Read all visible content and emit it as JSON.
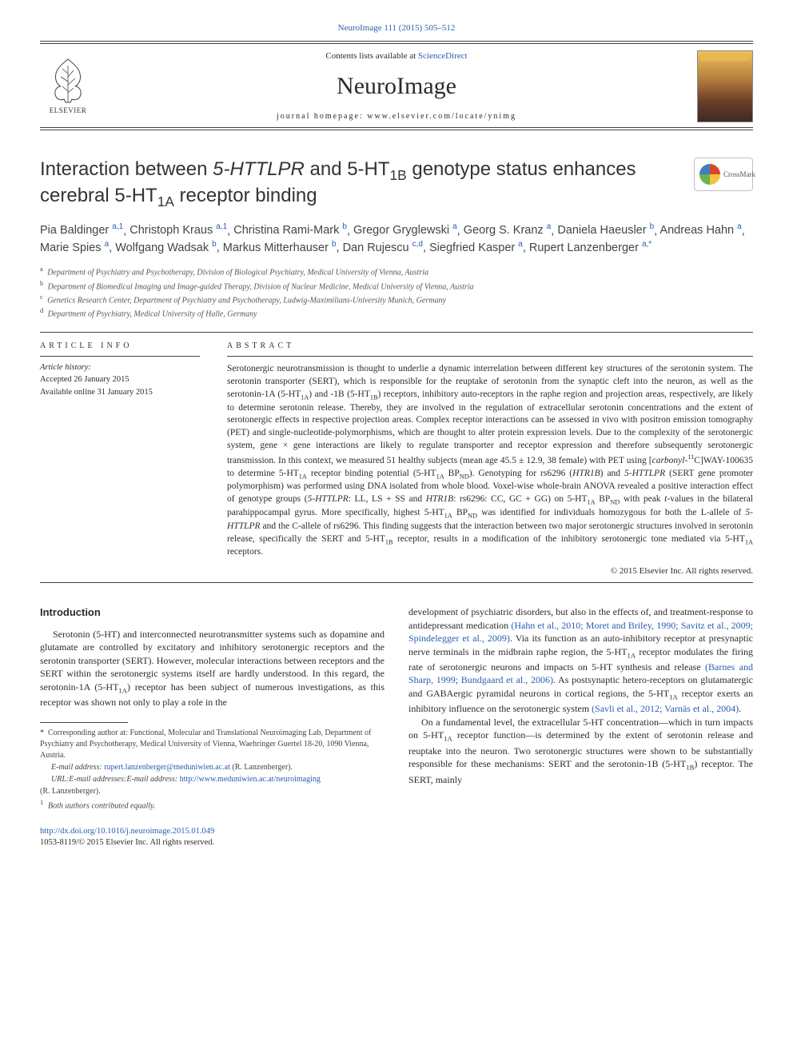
{
  "topLink": {
    "journal": "NeuroImage 111 (2015) 505–512"
  },
  "masthead": {
    "contentsPrefix": "Contents lists available at ",
    "contentsLink": "ScienceDirect",
    "journalName": "NeuroImage",
    "homepagePrefix": "journal homepage: ",
    "homepageUrl": "www.elsevier.com/locate/ynimg",
    "elsevierLabel": "ELSEVIER"
  },
  "crossmark": {
    "label": "CrossMark"
  },
  "title": "Interaction between 5-HTTLPR and 5-HT1B genotype status enhances cerebral 5-HT1A receptor binding",
  "authors": [
    {
      "name": "Pia Baldinger",
      "sup": "a,1"
    },
    {
      "name": "Christoph Kraus",
      "sup": "a,1"
    },
    {
      "name": "Christina Rami-Mark",
      "sup": "b"
    },
    {
      "name": "Gregor Gryglewski",
      "sup": "a"
    },
    {
      "name": "Georg S. Kranz",
      "sup": "a"
    },
    {
      "name": "Daniela Haeusler",
      "sup": "b"
    },
    {
      "name": "Andreas Hahn",
      "sup": "a"
    },
    {
      "name": "Marie Spies",
      "sup": "a"
    },
    {
      "name": "Wolfgang Wadsak",
      "sup": "b"
    },
    {
      "name": "Markus Mitterhauser",
      "sup": "b"
    },
    {
      "name": "Dan Rujescu",
      "sup": "c,d"
    },
    {
      "name": "Siegfried Kasper",
      "sup": "a"
    },
    {
      "name": "Rupert Lanzenberger",
      "sup": "a,*"
    }
  ],
  "affiliations": [
    {
      "key": "a",
      "text": "Department of Psychiatry and Psychotherapy, Division of Biological Psychiatry, Medical University of Vienna, Austria"
    },
    {
      "key": "b",
      "text": "Department of Biomedical Imaging und Image-guided Therapy, Division of Nuclear Medicine, Medical University of Vienna, Austria"
    },
    {
      "key": "c",
      "text": "Genetics Research Center, Department of Psychiatry and Psychotherapy, Ludwig-Maximilians-University Munich, Germany"
    },
    {
      "key": "d",
      "text": "Department of Psychiatry, Medical University of Halle, Germany"
    }
  ],
  "articleInfo": {
    "heading": "article info",
    "historyLabel": "Article history:",
    "accepted": "Accepted 26 January 2015",
    "online": "Available online 31 January 2015"
  },
  "abstract": {
    "heading": "abstract",
    "body": "Serotonergic neurotransmission is thought to underlie a dynamic interrelation between different key structures of the serotonin system. The serotonin transporter (SERT), which is responsible for the reuptake of serotonin from the synaptic cleft into the neuron, as well as the serotonin-1A (5-HT1A) and -1B (5-HT1B) receptors, inhibitory auto-receptors in the raphe region and projection areas, respectively, are likely to determine serotonin release. Thereby, they are involved in the regulation of extracellular serotonin concentrations and the extent of serotonergic effects in respective projection areas. Complex receptor interactions can be assessed in vivo with positron emission tomography (PET) and single-nucleotide-polymorphisms, which are thought to alter protein expression levels. Due to the complexity of the serotonergic system, gene × gene interactions are likely to regulate transporter and receptor expression and therefore subsequently serotonergic transmission. In this context, we measured 51 healthy subjects (mean age 45.5 ± 12.9, 38 female) with PET using [carbonyl-11C]WAY-100635 to determine 5-HT1A receptor binding potential (5-HT1A BPND). Genotyping for rs6296 (HTR1B) and 5-HTTLPR (SERT gene promoter polymorphism) was performed using DNA isolated from whole blood. Voxel-wise whole-brain ANOVA revealed a positive interaction effect of genotype groups (5-HTTLPR: LL, LS + SS and HTR1B: rs6296: CC, GC + GG) on 5-HT1A BPND with peak t-values in the bilateral parahippocampal gyrus. More specifically, highest 5-HT1A BPND was identified for individuals homozygous for both the L-allele of 5-HTTLPR and the C-allele of rs6296. This finding suggests that the interaction between two major serotonergic structures involved in serotonin release, specifically the SERT and 5-HT1B receptor, results in a modification of the inhibitory serotonergic tone mediated via 5-HT1A receptors.",
    "copyright": "© 2015 Elsevier Inc. All rights reserved."
  },
  "introduction": {
    "heading": "Introduction",
    "p1": "Serotonin (5-HT) and interconnected neurotransmitter systems such as dopamine and glutamate are controlled by excitatory and inhibitory serotonergic receptors and the serotonin transporter (SERT). However, molecular interactions between receptors and the SERT within the serotonergic systems itself are hardly understood. In this regard, the serotonin-1A (5-HT1A) receptor has been subject of numerous investigations, as this receptor was shown not only to play a role in the",
    "p2a": "development of psychiatric disorders, but also in the effects of, and treatment-response to antidepressant medication ",
    "p2link1": "(Hahn et al., 2010; Moret and Briley, 1990; Savitz et al., 2009; Spindelegger et al., 2009)",
    "p2b": ". Via its function as an auto-inhibitory receptor at presynaptic nerve terminals in the midbrain raphe region, the 5-HT1A receptor modulates the firing rate of serotonergic neurons and impacts on 5-HT synthesis and release ",
    "p2link2": "(Barnes and Sharp, 1999; Bundgaard et al., 2006)",
    "p2c": ". As postsynaptic hetero-receptors on glutamatergic and GABAergic pyramidal neurons in cortical regions, the 5-HT1A receptor exerts an inhibitory influence on the serotonergic system ",
    "p2link3": "(Savli et al., 2012; Varnäs et al., 2004)",
    "p2d": ".",
    "p3": "On a fundamental level, the extracellular 5-HT concentration—which in turn impacts on 5-HT1A receptor function—is determined by the extent of serotonin release and reuptake into the neuron. Two serotonergic structures were shown to be substantially responsible for these mechanisms: SERT and the serotonin-1B (5-HT1B) receptor. The SERT, mainly"
  },
  "footnotes": {
    "corr": "Corresponding author at: Functional, Molecular and Translational Neuroimaging Lab, Department of Psychiatry and Psychotherapy, Medical University of Vienna, Waehringer Guertel 18-20, 1090 Vienna, Austria.",
    "emailLabel": "E-mail address: ",
    "email": "rupert.lanzenberger@meduniwien.ac.at",
    "emailSuffix": " (R. Lanzenberger).",
    "urlLabel": "URL:E-mail addresses:E-mail address: ",
    "url": "http://www.meduniwien.ac.at/neuroimaging",
    "urlSuffix": "(R. Lanzenberger).",
    "equal": "Both authors contributed equally."
  },
  "doi": {
    "link": "http://dx.doi.org/10.1016/j.neuroimage.2015.01.049",
    "issn": "1053-8119/© 2015 Elsevier Inc. All rights reserved."
  },
  "colors": {
    "link": "#2a5db0",
    "text": "#2b2b2b",
    "rule": "#444444"
  }
}
